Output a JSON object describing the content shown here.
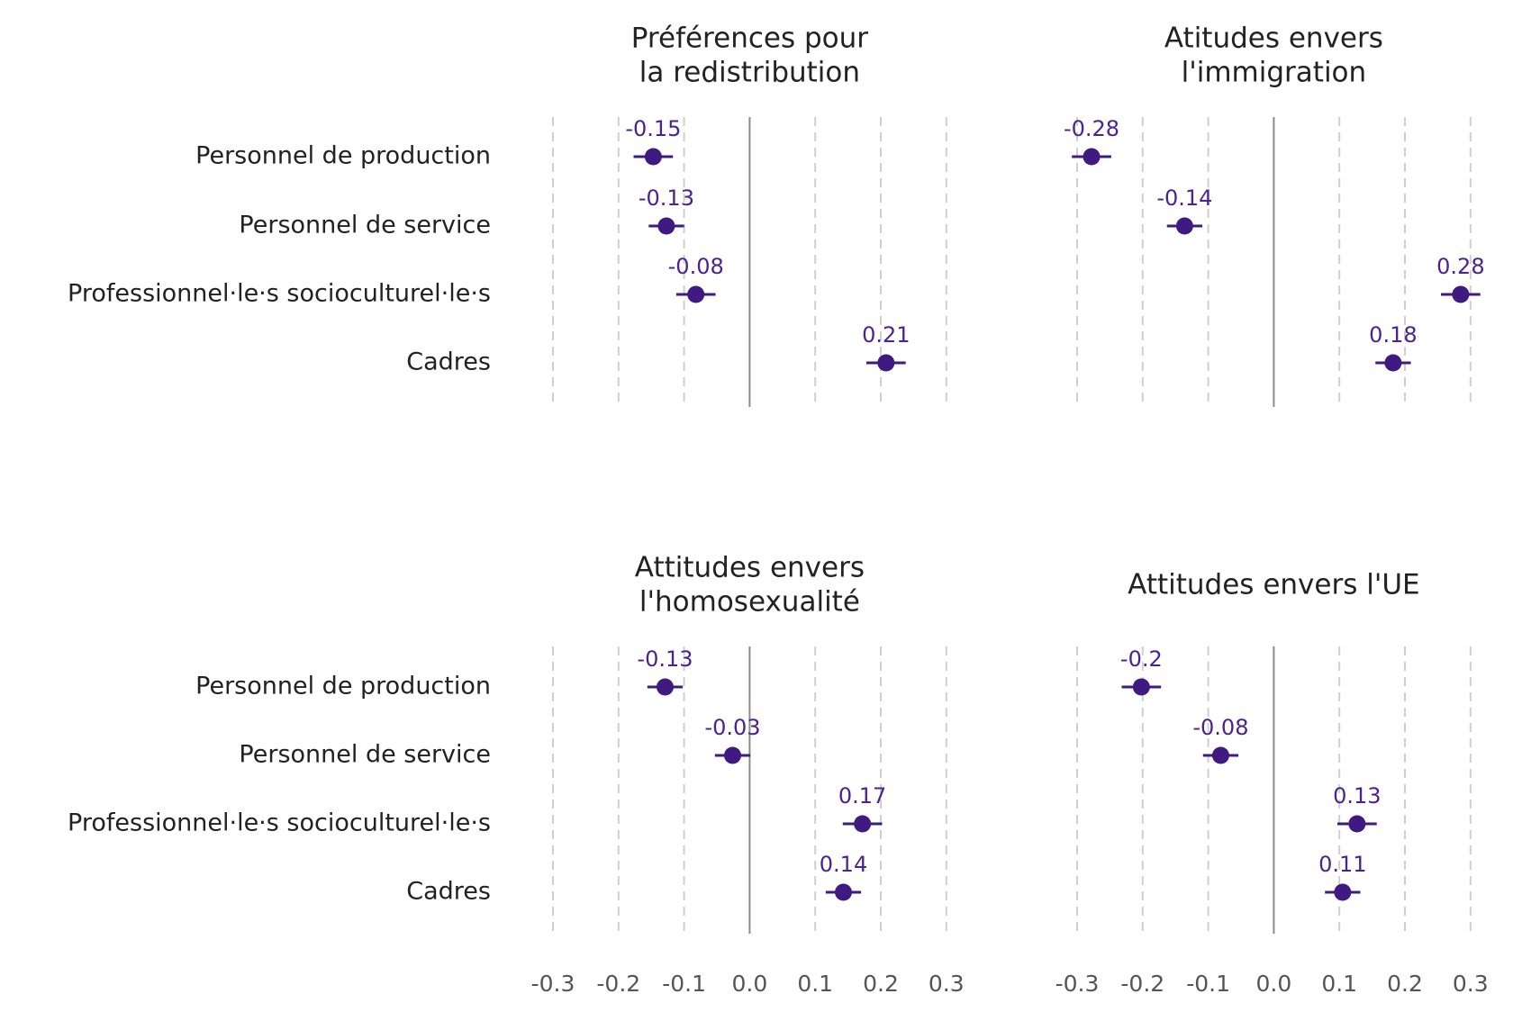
{
  "chart_data": {
    "type": "scatter",
    "categories": [
      "Personnel de production",
      "Personnel de service",
      "Professionnel·le·s socioculturel·le·s",
      "Cadres"
    ],
    "x_ticks": [
      "-0.3",
      "-0.2",
      "-0.1",
      "0.0",
      "0.1",
      "0.2",
      "0.3"
    ],
    "xlim": [
      -0.3,
      0.3
    ],
    "grid": true,
    "colors": {
      "point": "#3f1a80",
      "label": "#4b2390",
      "grid": "#cfcfcf",
      "zero": "#8c8c8c"
    },
    "panels": [
      {
        "title": "Préférences pour\nla redistribution",
        "values": [
          -0.147,
          -0.127,
          -0.082,
          0.208
        ],
        "ci_low": [
          -0.177,
          -0.154,
          -0.112,
          0.178
        ],
        "ci_high": [
          -0.117,
          -0.1,
          -0.052,
          0.238
        ],
        "labels": [
          "-0.15",
          "-0.13",
          "-0.08",
          "0.21"
        ]
      },
      {
        "title": "Atitudes envers\nl'immigration",
        "values": [
          -0.278,
          -0.136,
          0.285,
          0.182
        ],
        "ci_low": [
          -0.308,
          -0.163,
          0.255,
          0.155
        ],
        "ci_high": [
          -0.248,
          -0.109,
          0.315,
          0.209
        ],
        "labels": [
          "-0.28",
          "-0.14",
          "0.28",
          "0.18"
        ]
      },
      {
        "title": "Attitudes envers\nl'homosexualité",
        "values": [
          -0.129,
          -0.026,
          0.172,
          0.143
        ],
        "ci_low": [
          -0.156,
          -0.053,
          0.142,
          0.116
        ],
        "ci_high": [
          -0.102,
          0.001,
          0.202,
          0.17
        ],
        "labels": [
          "-0.13",
          "-0.03",
          "0.17",
          "0.14"
        ]
      },
      {
        "title": "Attitudes envers l'UE",
        "values": [
          -0.202,
          -0.081,
          0.127,
          0.105
        ],
        "ci_low": [
          -0.232,
          -0.108,
          0.097,
          0.078
        ],
        "ci_high": [
          -0.172,
          -0.054,
          0.157,
          0.132
        ],
        "labels": [
          "-0.2",
          "-0.08",
          "0.13",
          "0.11"
        ]
      }
    ]
  }
}
